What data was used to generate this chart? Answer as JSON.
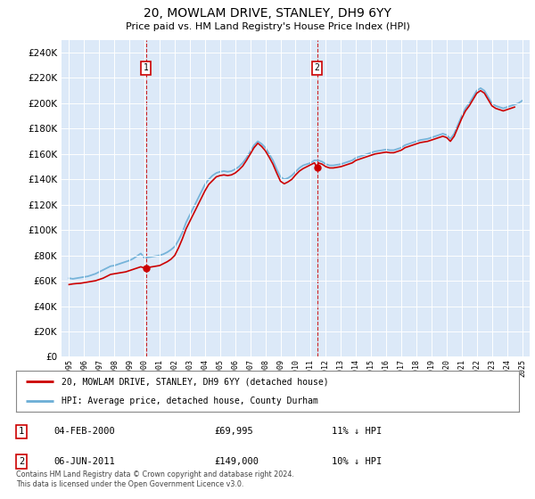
{
  "title": "20, MOWLAM DRIVE, STANLEY, DH9 6YY",
  "subtitle": "Price paid vs. HM Land Registry's House Price Index (HPI)",
  "legend_line1": "20, MOWLAM DRIVE, STANLEY, DH9 6YY (detached house)",
  "legend_line2": "HPI: Average price, detached house, County Durham",
  "footnote": "Contains HM Land Registry data © Crown copyright and database right 2024.\nThis data is licensed under the Open Government Licence v3.0.",
  "transactions": [
    {
      "label": "1",
      "date": "04-FEB-2000",
      "price": 69995,
      "hpi_note": "11% ↓ HPI",
      "x_year": 2000.09
    },
    {
      "label": "2",
      "date": "06-JUN-2011",
      "price": 149000,
      "hpi_note": "10% ↓ HPI",
      "x_year": 2011.43
    }
  ],
  "ylim": [
    0,
    250000
  ],
  "yticks": [
    0,
    20000,
    40000,
    60000,
    80000,
    100000,
    120000,
    140000,
    160000,
    180000,
    200000,
    220000,
    240000
  ],
  "xlim_start": 1994.5,
  "xlim_end": 2025.5,
  "plot_bg": "#dce9f8",
  "hpi_color": "#6baed6",
  "price_color": "#cc0000",
  "vline_color": "#cc0000",
  "grid_color": "#ffffff",
  "hpi_data_years": [
    1995.0,
    1995.25,
    1995.5,
    1995.75,
    1996.0,
    1996.25,
    1996.5,
    1996.75,
    1997.0,
    1997.25,
    1997.5,
    1997.75,
    1998.0,
    1998.25,
    1998.5,
    1998.75,
    1999.0,
    1999.25,
    1999.5,
    1999.75,
    2000.0,
    2000.25,
    2000.5,
    2000.75,
    2001.0,
    2001.25,
    2001.5,
    2001.75,
    2002.0,
    2002.25,
    2002.5,
    2002.75,
    2003.0,
    2003.25,
    2003.5,
    2003.75,
    2004.0,
    2004.25,
    2004.5,
    2004.75,
    2005.0,
    2005.25,
    2005.5,
    2005.75,
    2006.0,
    2006.25,
    2006.5,
    2006.75,
    2007.0,
    2007.25,
    2007.5,
    2007.75,
    2008.0,
    2008.25,
    2008.5,
    2008.75,
    2009.0,
    2009.25,
    2009.5,
    2009.75,
    2010.0,
    2010.25,
    2010.5,
    2010.75,
    2011.0,
    2011.25,
    2011.5,
    2011.75,
    2012.0,
    2012.25,
    2012.5,
    2012.75,
    2013.0,
    2013.25,
    2013.5,
    2013.75,
    2014.0,
    2014.25,
    2014.5,
    2014.75,
    2015.0,
    2015.25,
    2015.5,
    2015.75,
    2016.0,
    2016.25,
    2016.5,
    2016.75,
    2017.0,
    2017.25,
    2017.5,
    2017.75,
    2018.0,
    2018.25,
    2018.5,
    2018.75,
    2019.0,
    2019.25,
    2019.5,
    2019.75,
    2020.0,
    2020.25,
    2020.5,
    2020.75,
    2021.0,
    2021.25,
    2021.5,
    2021.75,
    2022.0,
    2022.25,
    2022.5,
    2022.75,
    2023.0,
    2023.25,
    2023.5,
    2023.75,
    2024.0,
    2024.25,
    2024.5,
    2024.75,
    2025.0
  ],
  "hpi_data_vals": [
    62000,
    61500,
    62000,
    62500,
    63000,
    63500,
    64500,
    65500,
    67000,
    68500,
    70000,
    71500,
    72000,
    73000,
    74000,
    75000,
    76000,
    77500,
    79500,
    81500,
    78000,
    78500,
    79000,
    79500,
    80000,
    81000,
    82500,
    84500,
    87000,
    92000,
    98000,
    106000,
    112000,
    118000,
    124000,
    130000,
    136000,
    140000,
    143000,
    145000,
    146000,
    146500,
    146000,
    146500,
    148000,
    150000,
    153000,
    157000,
    162000,
    167000,
    170000,
    168000,
    165000,
    160000,
    155000,
    148000,
    142000,
    140000,
    141000,
    143000,
    146000,
    149000,
    151000,
    152000,
    153000,
    155000,
    155000,
    154000,
    152000,
    151000,
    151000,
    151500,
    152000,
    153000,
    154000,
    155000,
    157000,
    158000,
    159000,
    160000,
    161000,
    162000,
    162500,
    163000,
    163500,
    163000,
    163000,
    164000,
    165000,
    167000,
    168000,
    169000,
    170000,
    171000,
    171500,
    172000,
    173000,
    174000,
    175000,
    176000,
    175000,
    172000,
    176000,
    183000,
    190000,
    196000,
    200000,
    205000,
    210000,
    212000,
    210000,
    205000,
    200000,
    198000,
    197000,
    196000,
    197000,
    198000,
    199000,
    200000,
    202000
  ],
  "price_data_years": [
    1995.0,
    1995.25,
    1995.5,
    1995.75,
    1996.0,
    1996.25,
    1996.5,
    1996.75,
    1997.0,
    1997.25,
    1997.5,
    1997.75,
    1998.0,
    1998.25,
    1998.5,
    1998.75,
    1999.0,
    1999.25,
    1999.5,
    1999.75,
    2000.0,
    2000.09,
    2000.25,
    2001.0,
    2001.25,
    2001.5,
    2001.75,
    2002.0,
    2002.25,
    2002.5,
    2002.75,
    2003.0,
    2003.25,
    2003.5,
    2003.75,
    2004.0,
    2004.25,
    2004.5,
    2004.75,
    2005.0,
    2005.25,
    2005.5,
    2005.75,
    2006.0,
    2006.25,
    2006.5,
    2006.75,
    2007.0,
    2007.25,
    2007.5,
    2007.75,
    2008.0,
    2008.25,
    2008.5,
    2008.75,
    2009.0,
    2009.25,
    2009.5,
    2009.75,
    2010.0,
    2010.25,
    2010.5,
    2010.75,
    2011.0,
    2011.25,
    2011.43,
    2011.5,
    2011.75,
    2012.0,
    2012.25,
    2012.5,
    2012.75,
    2013.0,
    2013.25,
    2013.5,
    2013.75,
    2014.0,
    2014.25,
    2014.5,
    2014.75,
    2015.0,
    2015.25,
    2015.5,
    2015.75,
    2016.0,
    2016.25,
    2016.5,
    2016.75,
    2017.0,
    2017.25,
    2017.5,
    2017.75,
    2018.0,
    2018.25,
    2018.5,
    2018.75,
    2019.0,
    2019.25,
    2019.5,
    2019.75,
    2020.0,
    2020.25,
    2020.5,
    2020.75,
    2021.0,
    2021.25,
    2021.5,
    2021.75,
    2022.0,
    2022.25,
    2022.5,
    2022.75,
    2023.0,
    2023.25,
    2023.5,
    2023.75,
    2024.0,
    2024.25,
    2024.5
  ],
  "price_data_vals": [
    57000,
    57500,
    57800,
    58000,
    58500,
    59000,
    59500,
    60000,
    61000,
    62000,
    63500,
    65000,
    65500,
    66000,
    66500,
    67000,
    68000,
    69000,
    70000,
    71000,
    69995,
    69995,
    70500,
    72000,
    73500,
    75000,
    77000,
    80000,
    86000,
    93000,
    101000,
    107000,
    113000,
    119000,
    125000,
    131000,
    136000,
    139000,
    142000,
    143000,
    143500,
    143000,
    143500,
    145000,
    147500,
    150500,
    155000,
    160000,
    165000,
    168500,
    166000,
    162500,
    157500,
    152000,
    145000,
    138500,
    136500,
    138000,
    140000,
    143500,
    146500,
    148500,
    150000,
    151500,
    153000,
    149000,
    153000,
    152000,
    150000,
    149000,
    149000,
    149500,
    150000,
    151000,
    152000,
    153000,
    155000,
    156000,
    157000,
    158000,
    159000,
    160000,
    160500,
    161000,
    161500,
    161000,
    161000,
    162000,
    163000,
    165000,
    166000,
    167000,
    168000,
    169000,
    169500,
    170000,
    171000,
    172000,
    173000,
    174000,
    173000,
    170000,
    174000,
    181000,
    188000,
    194000,
    198000,
    203000,
    208000,
    210000,
    208000,
    203000,
    198000,
    196000,
    195000,
    194000,
    195000,
    196000,
    197000
  ]
}
